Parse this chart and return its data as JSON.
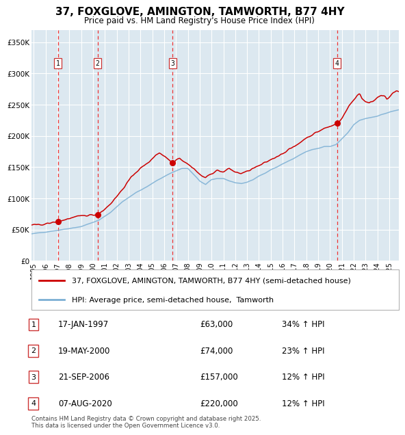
{
  "title": "37, FOXGLOVE, AMINGTON, TAMWORTH, B77 4HY",
  "subtitle": "Price paid vs. HM Land Registry's House Price Index (HPI)",
  "legend_line1": "37, FOXGLOVE, AMINGTON, TAMWORTH, B77 4HY (semi-detached house)",
  "legend_line2": "HPI: Average price, semi-detached house,  Tamworth",
  "footer1": "Contains HM Land Registry data © Crown copyright and database right 2025.",
  "footer2": "This data is licensed under the Open Government Licence v3.0.",
  "transactions": [
    {
      "num": 1,
      "date": "17-JAN-1997",
      "price": 63000,
      "year": 1997.04,
      "hpi_pct": "34% ↑ HPI"
    },
    {
      "num": 2,
      "date": "19-MAY-2000",
      "price": 74000,
      "year": 2000.38,
      "hpi_pct": "23% ↑ HPI"
    },
    {
      "num": 3,
      "date": "21-SEP-2006",
      "price": 157000,
      "year": 2006.72,
      "hpi_pct": "12% ↑ HPI"
    },
    {
      "num": 4,
      "date": "07-AUG-2020",
      "price": 220000,
      "year": 2020.6,
      "hpi_pct": "12% ↑ HPI"
    }
  ],
  "trans_prices": [
    63000,
    74000,
    157000,
    220000
  ],
  "trans_years": [
    1997.04,
    2000.38,
    2006.72,
    2020.6
  ],
  "red_line_color": "#cc0000",
  "blue_line_color": "#7bafd4",
  "background_color": "#dce8f0",
  "grid_color": "#ffffff",
  "dashed_line_color": "#ee3333",
  "ylim": [
    0,
    370000
  ],
  "xlim_start": 1994.8,
  "xlim_end": 2025.8,
  "yticks": [
    0,
    50000,
    100000,
    150000,
    200000,
    250000,
    300000,
    350000
  ],
  "xticks": [
    1995,
    1996,
    1997,
    1998,
    1999,
    2000,
    2001,
    2002,
    2003,
    2004,
    2005,
    2006,
    2007,
    2008,
    2009,
    2010,
    2011,
    2012,
    2013,
    2014,
    2015,
    2016,
    2017,
    2018,
    2019,
    2020,
    2021,
    2022,
    2023,
    2024,
    2025
  ]
}
